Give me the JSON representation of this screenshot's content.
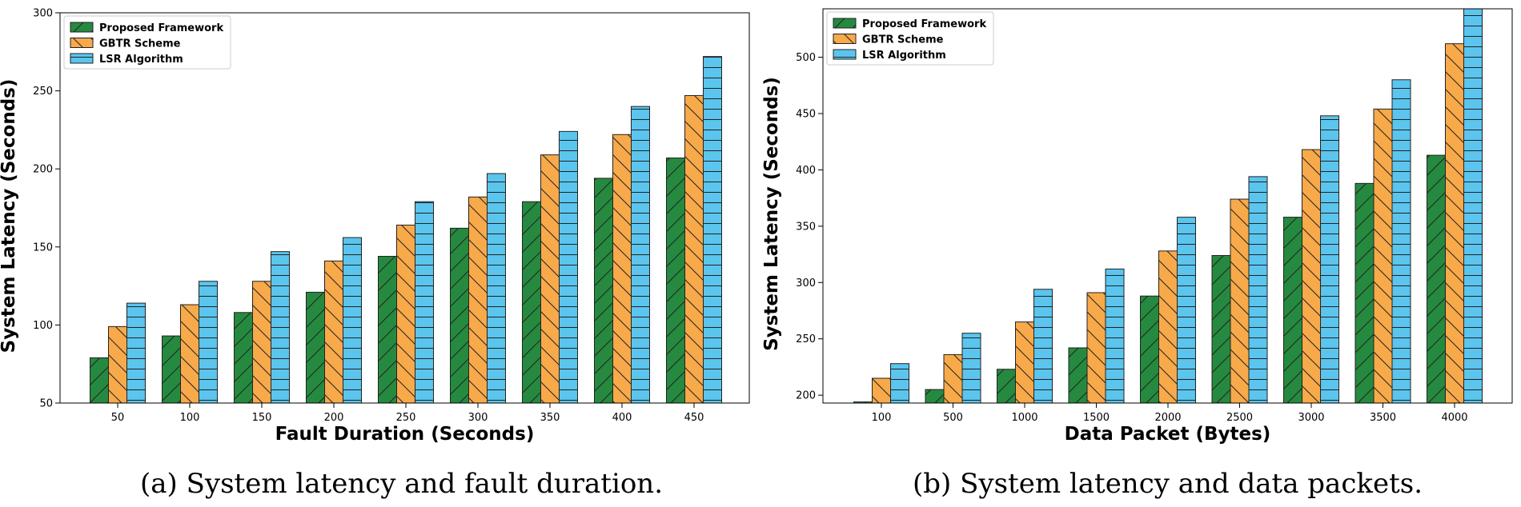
{
  "colors": {
    "proposed": "#258a3f",
    "gbtr": "#f8a94a",
    "lsr": "#5bc5ee"
  },
  "captions": {
    "a": "(a) System latency and fault duration.",
    "b": "(b) System latency and data packets."
  },
  "chart_data": [
    {
      "type": "bar",
      "title": "",
      "xlabel": "Fault Duration (Seconds)",
      "ylabel": "System Latency (Seconds)",
      "ylim": [
        50,
        300
      ],
      "yticks": [
        50,
        100,
        150,
        200,
        250,
        300
      ],
      "categories": [
        "50",
        "100",
        "150",
        "200",
        "250",
        "300",
        "350",
        "400",
        "450"
      ],
      "legend": "top-left",
      "series": [
        {
          "name": "Proposed Framework",
          "values": [
            79,
            93,
            108,
            121,
            144,
            162,
            179,
            194,
            207
          ]
        },
        {
          "name": "GBTR Scheme",
          "values": [
            99,
            113,
            128,
            141,
            164,
            182,
            209,
            222,
            247
          ]
        },
        {
          "name": "LSR Algorithm",
          "values": [
            114,
            128,
            147,
            156,
            179,
            197,
            224,
            240,
            272
          ]
        }
      ]
    },
    {
      "type": "bar",
      "title": "",
      "xlabel": "Data Packet (Bytes)",
      "ylabel": "System Latency (Seconds)",
      "ylim": [
        193,
        543
      ],
      "yticks": [
        200,
        250,
        300,
        350,
        400,
        450,
        500
      ],
      "categories": [
        "100",
        "500",
        "1000",
        "1500",
        "2000",
        "2500",
        "3000",
        "3500",
        "4000"
      ],
      "legend": "top-left",
      "series": [
        {
          "name": "Proposed Framework",
          "values": [
            194,
            205,
            223,
            242,
            288,
            324,
            358,
            388,
            413
          ]
        },
        {
          "name": "GBTR Scheme",
          "values": [
            215,
            236,
            265,
            291,
            328,
            374,
            418,
            454,
            512
          ]
        },
        {
          "name": "LSR Algorithm",
          "values": [
            228,
            255,
            294,
            312,
            358,
            394,
            448,
            480,
            543
          ]
        }
      ]
    }
  ]
}
